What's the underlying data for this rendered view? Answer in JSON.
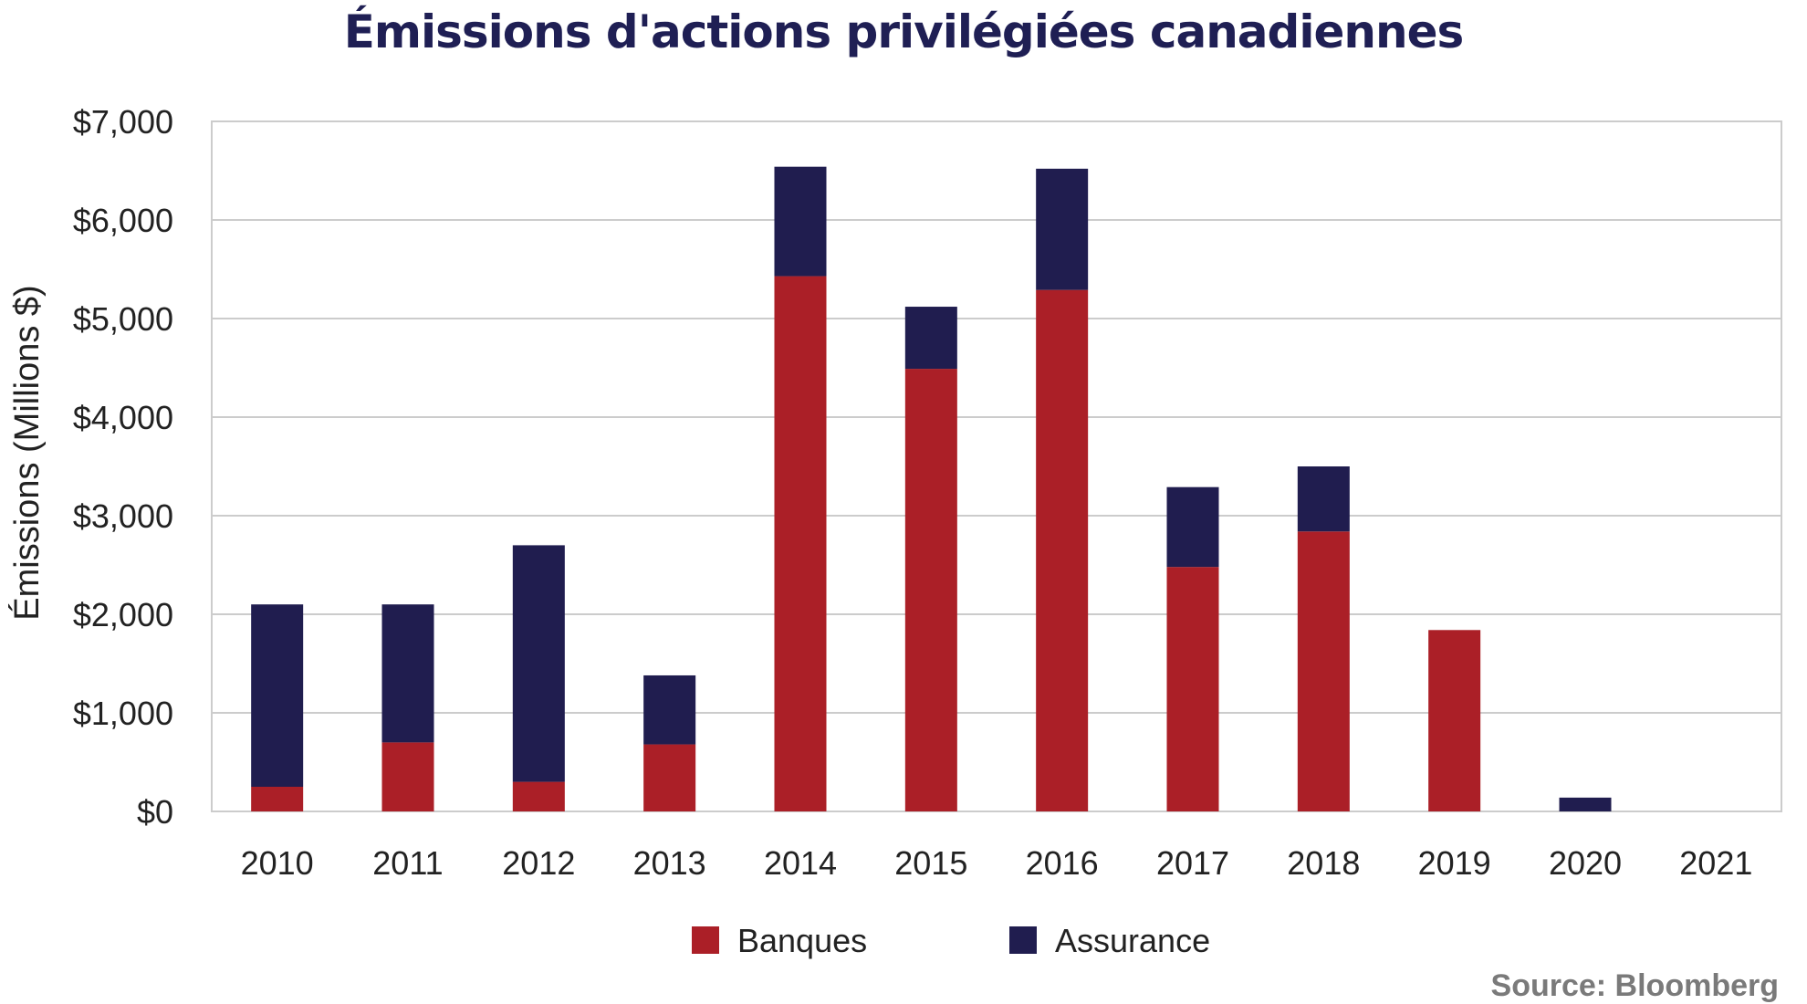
{
  "colors": {
    "banques": "#ab1f27",
    "assurance": "#201d4f",
    "grid": "#cccccc",
    "title": "#1f1f54",
    "source": "#7a7a7a"
  },
  "chart_data": {
    "type": "bar",
    "stacked": true,
    "title": "Émissions d'actions privilégiées canadiennes",
    "xlabel": "",
    "ylabel": "Émissions (Millions $)",
    "ylim": [
      0,
      7000
    ],
    "yticks": [
      0,
      1000,
      2000,
      3000,
      4000,
      5000,
      6000,
      7000
    ],
    "ytick_labels": [
      "$0",
      "$1,000",
      "$2,000",
      "$3,000",
      "$4,000",
      "$5,000",
      "$6,000",
      "$7,000"
    ],
    "categories": [
      "2010",
      "2011",
      "2012",
      "2013",
      "2014",
      "2015",
      "2016",
      "2017",
      "2018",
      "2019",
      "2020",
      "2021"
    ],
    "series": [
      {
        "name": "Banques",
        "values": [
          250,
          700,
          300,
          680,
          5430,
          4490,
          5290,
          2480,
          2840,
          1840,
          0,
          0
        ]
      },
      {
        "name": "Assurance",
        "values": [
          1850,
          1400,
          2400,
          700,
          1110,
          630,
          1230,
          810,
          660,
          0,
          140,
          0
        ]
      }
    ],
    "grid": true,
    "legend": "bottom-center",
    "source": "Source: Bloomberg"
  }
}
